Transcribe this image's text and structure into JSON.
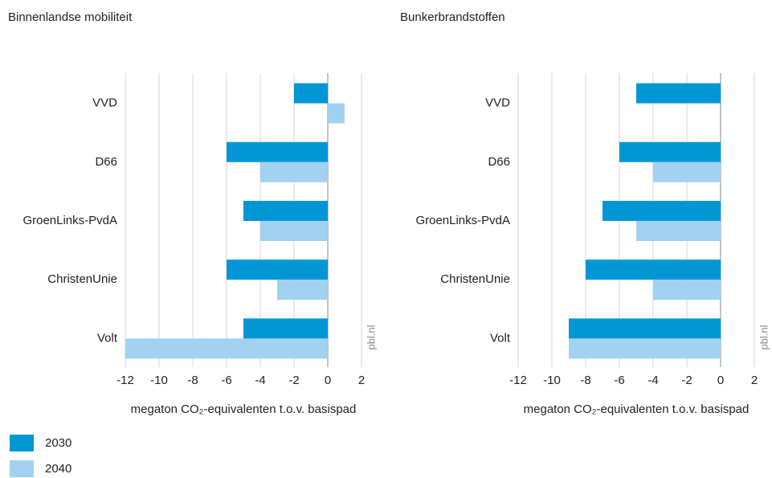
{
  "chart_data": [
    {
      "type": "barh",
      "title": "Binnenlandse mobiliteit",
      "categories": [
        "VVD",
        "D66",
        "GroenLinks-PvdA",
        "ChristenUnie",
        "Volt"
      ],
      "series": [
        {
          "name": "2030",
          "color": "#0096d6",
          "values": [
            -2,
            -6,
            -5,
            -6,
            -5
          ]
        },
        {
          "name": "2040",
          "color": "#a3d1f2",
          "values": [
            1,
            -4,
            -4,
            -3,
            -12
          ]
        }
      ],
      "xlim": [
        -12,
        2
      ],
      "xticks": [
        -12,
        -10,
        -8,
        -6,
        -4,
        -2,
        0,
        2
      ],
      "xlabel": "megaton CO₂-equivalenten t.o.v. basispad",
      "grid": true,
      "source": "pbl.nl"
    },
    {
      "type": "barh",
      "title": "Bunkerbrandstoffen",
      "categories": [
        "VVD",
        "D66",
        "GroenLinks-PvdA",
        "ChristenUnie",
        "Volt"
      ],
      "series": [
        {
          "name": "2030",
          "color": "#0096d6",
          "values": [
            -5,
            -6,
            -7,
            -8,
            -9
          ]
        },
        {
          "name": "2040",
          "color": "#a3d1f2",
          "values": [
            0,
            -4,
            -5,
            -4,
            -9
          ]
        }
      ],
      "xlim": [
        -12,
        2
      ],
      "xticks": [
        -12,
        -10,
        -8,
        -6,
        -4,
        -2,
        0,
        2
      ],
      "xlabel": "megaton CO₂-equivalenten t.o.v. basispad",
      "grid": true,
      "source": "pbl.nl"
    }
  ]
}
